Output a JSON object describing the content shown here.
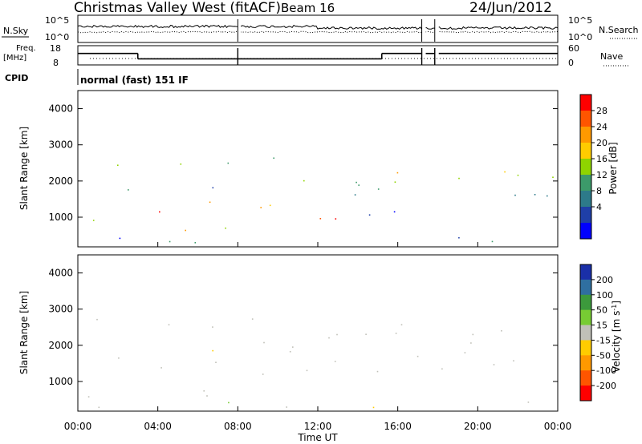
{
  "header": {
    "title": "Christmas Valley West (fitACF)",
    "beam": "Beam 16",
    "date": "24/Jun/2012"
  },
  "top_panels": {
    "nsky_label": "N.Sky",
    "nsky_ticks": [
      "10^5",
      "10^0"
    ],
    "nsearch_label": "N.Search",
    "nsearch_ticks_right": [
      "10^5",
      "10^0"
    ],
    "freq_label": "Freq.",
    "freq_unit": "[MHz]",
    "freq_ticks": [
      "18",
      "8"
    ],
    "nave_label": "Nave",
    "nave_ticks_right": [
      "60",
      "0"
    ],
    "cpid_label": "CPID",
    "cpid_value": "normal (fast) 151 IF"
  },
  "chart_data": [
    {
      "type": "heatmap",
      "name": "power-panel",
      "ylabel": "Slant Range [km]",
      "yticks": [
        "4000",
        "3000",
        "2000",
        "1000"
      ],
      "ylim": [
        180,
        4500
      ],
      "xlim": [
        0,
        24
      ],
      "colorbar_label": "Power [dB]",
      "colorbar_ticks": [
        "28",
        "24",
        "20",
        "16",
        "12",
        "8",
        "4"
      ],
      "colorbar_colors": [
        "#ff0000",
        "#ff5500",
        "#ff9900",
        "#ffcc00",
        "#8fd400",
        "#3c9a6a",
        "#2d7a8a",
        "#1f3fa8",
        "#0000ff"
      ]
    },
    {
      "type": "heatmap",
      "name": "velocity-panel",
      "ylabel": "Slant Range [km]",
      "yticks": [
        "4000",
        "3000",
        "2000",
        "1000"
      ],
      "ylim": [
        180,
        4500
      ],
      "xlim": [
        0,
        24
      ],
      "colorbar_label": "Velocity [m s",
      "colorbar_label_sup": "-1",
      "colorbar_label_end": "]",
      "colorbar_ticks": [
        "200",
        "100",
        "50",
        "15",
        "-15",
        "-50",
        "-100",
        "-200"
      ],
      "colorbar_colors": [
        "#1a2fa8",
        "#2f6fa0",
        "#3c9a3c",
        "#77cc33",
        "#c0c0b8",
        "#ffcc00",
        "#ff9900",
        "#ff5500",
        "#ff0000"
      ]
    }
  ],
  "xaxis": {
    "label": "Time UT",
    "ticks": [
      "00:00",
      "04:00",
      "08:00",
      "12:00",
      "16:00",
      "20:00",
      "00:00"
    ]
  }
}
